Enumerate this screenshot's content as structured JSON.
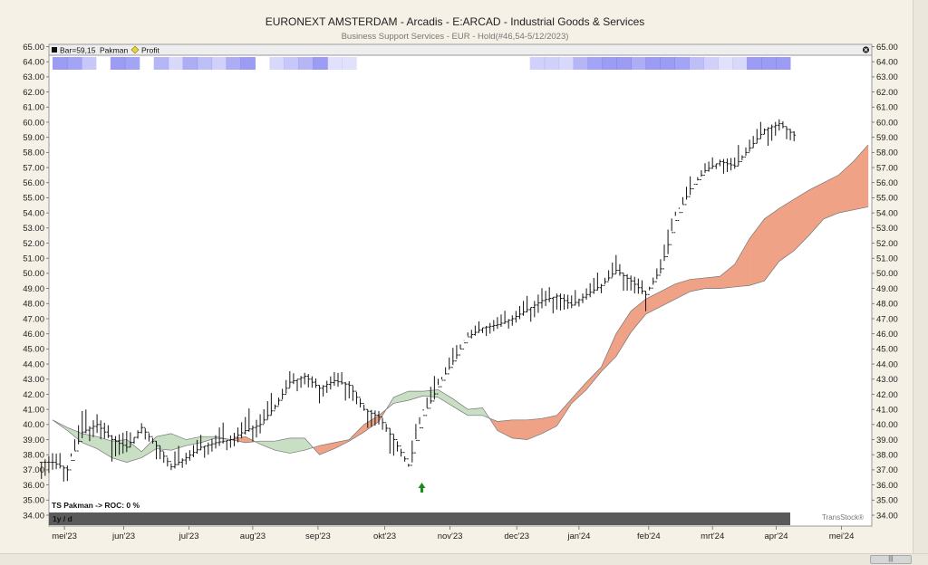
{
  "header": {
    "title": "EURONEXT AMSTERDAM - Arcadis - E:ARCAD - Industrial Goods & Services",
    "subtitle": "Business Support Services - EUR - Hold(#46,54-5/12/2023)"
  },
  "legend": {
    "bar_label": "Bar=59,15",
    "pakman_label": "Pakman",
    "profit_label": "Profit",
    "close_icon": "close-icon"
  },
  "indicator": {
    "label": "TS Pakman -> ROC: 0 %",
    "timeframe": "1y / d"
  },
  "watermark": "TransStock®",
  "colors": {
    "cloud_bull": "#c9dfc4",
    "cloud_bear": "#f0a287",
    "heat": "#6f6ff0",
    "bar": "#111111",
    "arrow": "#1a8a1a"
  },
  "chart_data": {
    "type": "ohlc",
    "ylim": [
      34,
      65
    ],
    "y_ticks": [
      "34.00",
      "35.00",
      "36.00",
      "37.00",
      "38.00",
      "39.00",
      "40.00",
      "41.00",
      "42.00",
      "43.00",
      "44.00",
      "45.00",
      "46.00",
      "47.00",
      "48.00",
      "49.00",
      "50.00",
      "51.00",
      "52.00",
      "53.00",
      "54.00",
      "55.00",
      "56.00",
      "57.00",
      "58.00",
      "59.00",
      "60.00",
      "61.00",
      "62.00",
      "63.00",
      "64.00",
      "65.00"
    ],
    "x_ticks": [
      "mei'23",
      "jun'23",
      "jul'23",
      "aug'23",
      "sep'23",
      "okt'23",
      "nov'23",
      "dec'23",
      "jan'24",
      "feb'24",
      "mrt'24",
      "apr'24",
      "mei'24"
    ],
    "x_tick_pos": [
      0.8,
      4.8,
      9.2,
      13.5,
      17.9,
      22.4,
      26.8,
      31.3,
      35.5,
      40.2,
      44.5,
      48.8,
      53.2
    ],
    "x_range": [
      0,
      55
    ],
    "price": {
      "x": [
        0,
        1,
        2,
        3,
        4,
        5,
        6,
        7,
        8,
        9,
        10,
        11,
        12,
        13,
        14,
        15,
        16,
        17,
        18,
        19,
        20,
        21,
        22,
        23,
        24,
        25,
        26,
        27,
        28,
        29,
        30,
        31,
        32,
        33,
        34,
        35,
        36,
        37,
        38,
        39,
        40,
        41,
        42,
        43,
        44,
        45,
        46,
        47,
        48,
        49,
        50
      ],
      "close": [
        37.5,
        37.0,
        39.5,
        40.0,
        39.0,
        38.5,
        39.8,
        38.6,
        37.2,
        37.8,
        38.5,
        38.8,
        39.0,
        39.6,
        40.0,
        41.2,
        42.8,
        43.2,
        42.4,
        42.9,
        42.6,
        41.0,
        40.5,
        39.0,
        37.3,
        40.6,
        42.5,
        44.2,
        45.8,
        46.4,
        46.6,
        47.0,
        47.6,
        48.2,
        48.5,
        47.9,
        48.6,
        49.2,
        50.2,
        49.5,
        48.6,
        50.3,
        53.5,
        55.6,
        56.8,
        57.4,
        57.1,
        58.3,
        59.5,
        59.9,
        59.15
      ],
      "high": [
        38.4,
        38.2,
        41.0,
        41.3,
        40.3,
        40.1,
        40.4,
        39.5,
        38.2,
        38.8,
        39.2,
        39.5,
        40.3,
        40.5,
        41.3,
        42.3,
        43.6,
        43.6,
        43.3,
        43.6,
        43.4,
        42.3,
        41.3,
        40.2,
        38.4,
        41.3,
        43.6,
        45.2,
        46.4,
        46.9,
        47.2,
        47.6,
        48.4,
        49.5,
        49.2,
        48.9,
        49.3,
        50.1,
        51.4,
        50.5,
        49.9,
        51.1,
        54.4,
        56.3,
        57.5,
        57.9,
        57.8,
        59.3,
        60.2,
        60.1,
        59.9
      ],
      "low": [
        36.6,
        36.3,
        38.4,
        38.9,
        37.6,
        37.5,
        38.6,
        37.9,
        36.8,
        37.0,
        37.7,
        38.0,
        38.4,
        38.6,
        38.9,
        40.3,
        41.5,
        42.3,
        41.6,
        42.0,
        41.6,
        40.2,
        39.6,
        37.9,
        37.0,
        39.6,
        41.9,
        43.3,
        45.1,
        45.8,
        46.0,
        46.3,
        46.8,
        47.0,
        47.4,
        47.0,
        47.8,
        48.4,
        49.5,
        48.7,
        47.7,
        49.1,
        52.4,
        54.9,
        56.1,
        56.8,
        56.3,
        57.4,
        58.5,
        58.4,
        58.7
      ]
    },
    "cloud": {
      "x": [
        0,
        1,
        2,
        3,
        4,
        5,
        6,
        7,
        8,
        9,
        10,
        11,
        12,
        13,
        14,
        15,
        16,
        17,
        18,
        19,
        20,
        21,
        22,
        23,
        24,
        25,
        26,
        27,
        28,
        29,
        30,
        31,
        32,
        33,
        34,
        35,
        36,
        37,
        38,
        39,
        40,
        41,
        42,
        43,
        44,
        45,
        46,
        47,
        48,
        49,
        50,
        51,
        52,
        53,
        54,
        55
      ],
      "span_a": [
        40.3,
        39.8,
        39.4,
        39.2,
        38.9,
        39.0,
        38.2,
        39.2,
        39.4,
        39.0,
        39.2,
        39.2,
        39.0,
        38.8,
        38.9,
        38.9,
        39.1,
        39.1,
        38.0,
        38.4,
        38.9,
        39.5,
        40.2,
        41.8,
        42.2,
        42.2,
        42.3,
        41.7,
        41.0,
        41.1,
        39.6,
        39.1,
        39.0,
        39.4,
        39.9,
        41.4,
        42.3,
        43.5,
        44.5,
        46.1,
        47.3,
        47.8,
        48.3,
        48.8,
        49.0,
        49.0,
        49.1,
        49.2,
        49.5,
        50.8,
        51.5,
        52.5,
        53.6,
        54.0,
        54.2,
        54.4
      ],
      "span_b": [
        40.3,
        39.6,
        38.8,
        38.4,
        37.8,
        37.5,
        37.8,
        38.4,
        38.3,
        38.6,
        38.8,
        39.1,
        39.0,
        39.2,
        38.7,
        38.3,
        38.1,
        38.3,
        38.6,
        38.8,
        39.0,
        40.0,
        40.6,
        41.4,
        41.6,
        41.9,
        41.8,
        41.2,
        40.6,
        40.6,
        40.2,
        40.3,
        40.3,
        40.4,
        40.6,
        41.7,
        42.8,
        43.8,
        46.0,
        47.5,
        48.3,
        48.8,
        49.3,
        49.6,
        49.7,
        49.8,
        50.6,
        52.3,
        53.6,
        54.3,
        54.9,
        55.5,
        56.0,
        56.5,
        57.4,
        58.5
      ]
    },
    "heat_strips": [
      0.9,
      0.8,
      0.4,
      0.0,
      0.9,
      0.8,
      0.0,
      0.6,
      0.2,
      0.7,
      0.5,
      0.3,
      0.7,
      0.9,
      0.0,
      0.2,
      0.4,
      0.6,
      0.9,
      0.1,
      0.1,
      0.0,
      0.0,
      0.0,
      0.0,
      0.0,
      0.0,
      0.0,
      0.0,
      0.0,
      0.0,
      0.0,
      0.0,
      0.3,
      0.3,
      0.2,
      0.6,
      0.8,
      0.9,
      0.9,
      0.7,
      0.9,
      0.9,
      0.8,
      0.5,
      0.3,
      0.1,
      0.2,
      0.9,
      0.9,
      0.9
    ],
    "signal_arrow": {
      "x": 24.9,
      "y": 35.8,
      "direction": "up"
    }
  }
}
